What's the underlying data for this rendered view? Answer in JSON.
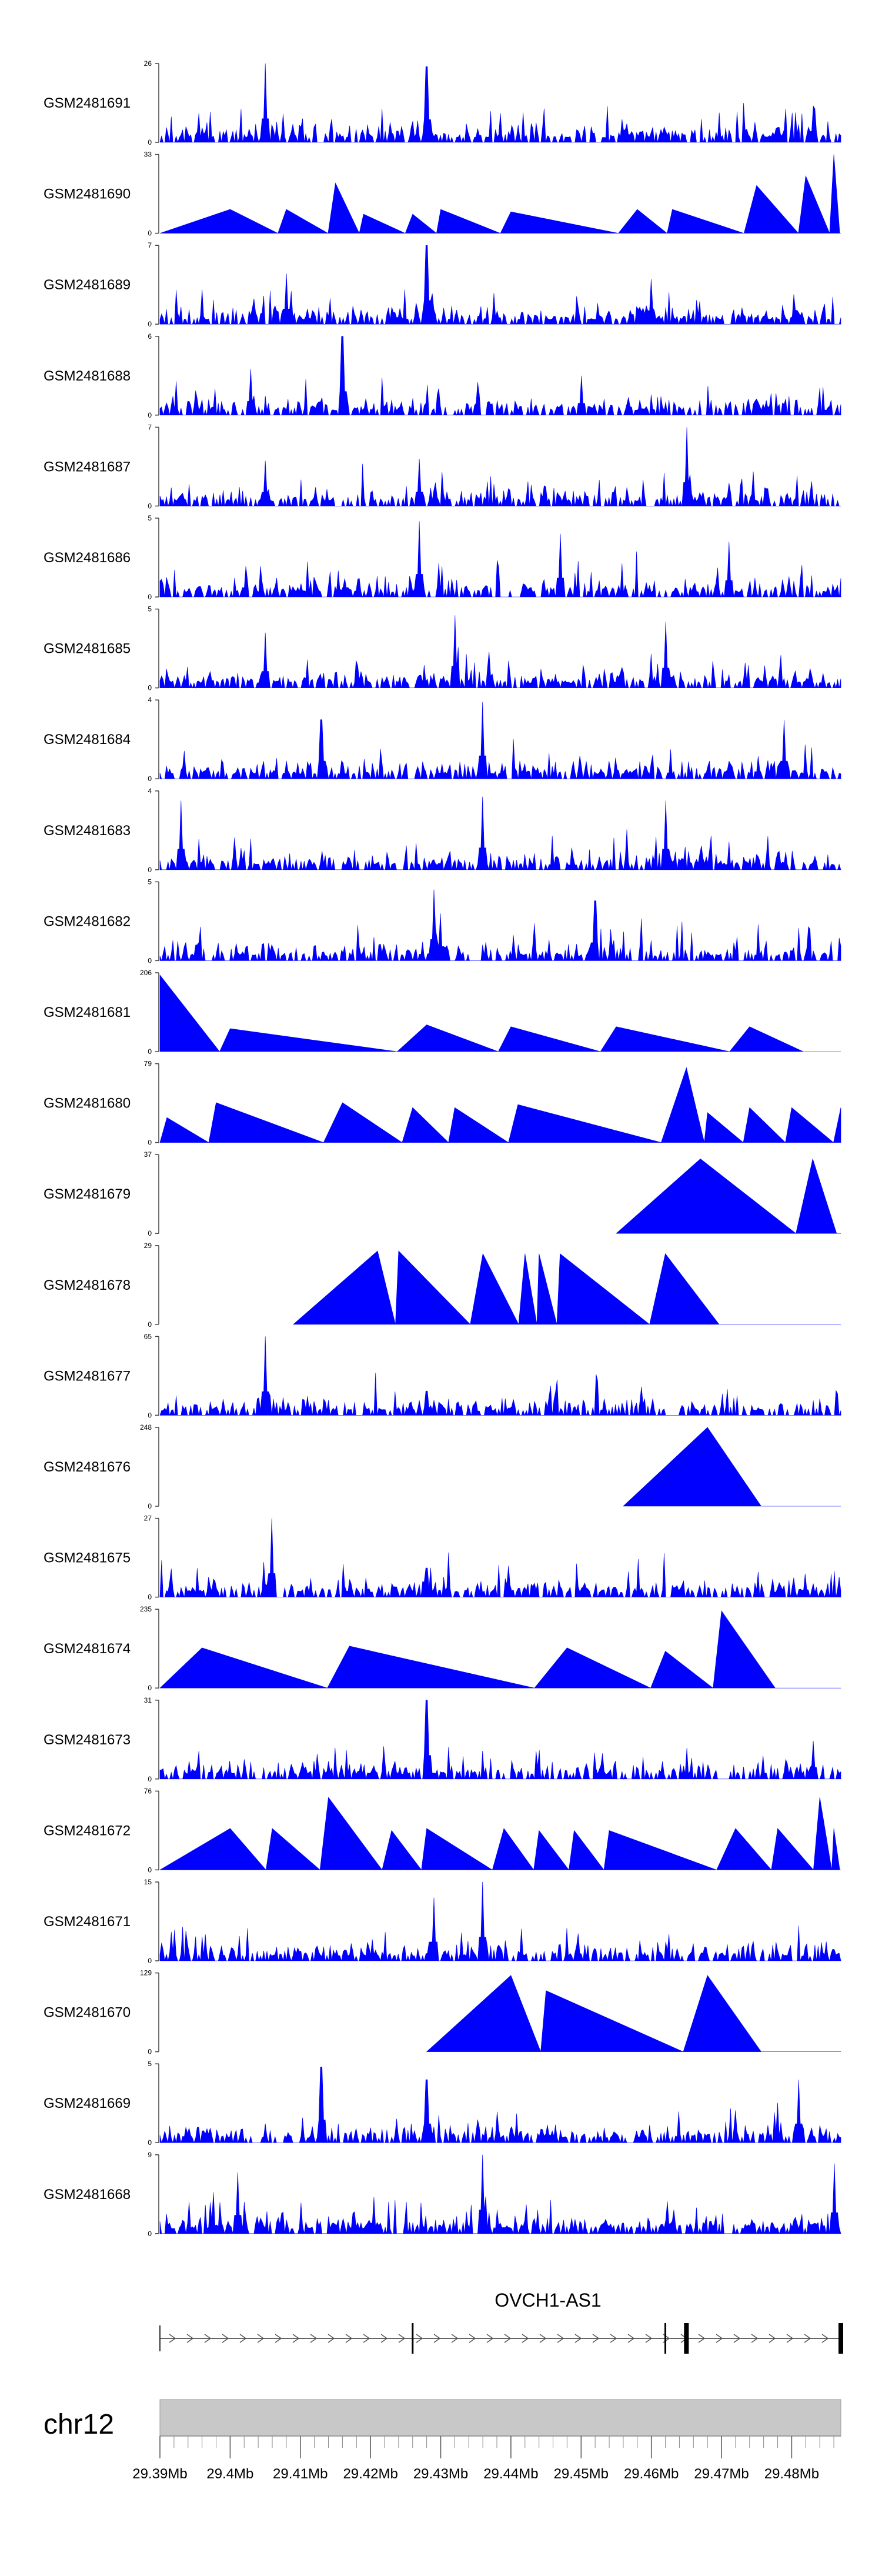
{
  "chart_data": {
    "type": "area",
    "title": "",
    "colors": {
      "signal": "#0000ff",
      "axis": "#404040",
      "ideogram": "#c8c8c8",
      "gene": "#000000"
    },
    "genomic_range_mb": [
      29.39,
      29.487
    ],
    "tracks": [
      {
        "name": "GSM2481691",
        "ymin": 0,
        "ymax": 26,
        "style": "dense",
        "peaks": [
          [
            29.405,
            26
          ],
          [
            29.409,
            6
          ],
          [
            29.428,
            25
          ],
          [
            29.483,
            12
          ]
        ]
      },
      {
        "name": "GSM2481690",
        "ymin": 0,
        "ymax": 33,
        "style": "sparse",
        "peaks": [
          [
            29.4,
            10
          ],
          [
            29.408,
            10
          ],
          [
            29.415,
            21
          ],
          [
            29.419,
            8
          ],
          [
            29.426,
            8
          ],
          [
            29.43,
            10
          ],
          [
            29.44,
            9
          ],
          [
            29.458,
            10
          ],
          [
            29.463,
            10
          ],
          [
            29.475,
            20
          ],
          [
            29.482,
            24
          ],
          [
            29.486,
            33
          ]
        ]
      },
      {
        "name": "GSM2481689",
        "ymin": 0,
        "ymax": 7,
        "style": "dense",
        "peaks": [
          [
            29.428,
            7
          ],
          [
            29.408,
            4.5
          ],
          [
            29.46,
            4
          ]
        ]
      },
      {
        "name": "GSM2481688",
        "ymin": 0,
        "ymax": 6,
        "style": "dense",
        "peaks": [
          [
            29.416,
            6
          ],
          [
            29.403,
            3.5
          ],
          [
            29.45,
            3
          ]
        ]
      },
      {
        "name": "GSM2481687",
        "ymin": 0,
        "ymax": 7,
        "style": "dense",
        "peaks": [
          [
            29.465,
            7
          ],
          [
            29.427,
            4.2
          ],
          [
            29.405,
            4
          ]
        ]
      },
      {
        "name": "GSM2481686",
        "ymin": 0,
        "ymax": 5,
        "style": "dense",
        "peaks": [
          [
            29.427,
            4.8
          ],
          [
            29.447,
            4
          ],
          [
            29.471,
            3.5
          ]
        ]
      },
      {
        "name": "GSM2481685",
        "ymin": 0,
        "ymax": 5,
        "style": "dense",
        "peaks": [
          [
            29.432,
            4.6
          ],
          [
            29.462,
            4.2
          ],
          [
            29.405,
            3.5
          ]
        ]
      },
      {
        "name": "GSM2481684",
        "ymin": 0,
        "ymax": 4,
        "style": "dense",
        "peaks": [
          [
            29.436,
            3.9
          ],
          [
            29.413,
            3
          ],
          [
            29.479,
            3
          ]
        ]
      },
      {
        "name": "GSM2481683",
        "ymin": 0,
        "ymax": 4,
        "style": "dense",
        "peaks": [
          [
            29.393,
            3.5
          ],
          [
            29.436,
            3.7
          ],
          [
            29.462,
            3.5
          ]
        ]
      },
      {
        "name": "GSM2481682",
        "ymin": 0,
        "ymax": 5,
        "style": "dense",
        "peaks": [
          [
            29.429,
            4.5
          ],
          [
            29.43,
            3
          ],
          [
            29.452,
            3.8
          ]
        ]
      },
      {
        "name": "GSM2481681",
        "ymin": 0,
        "ymax": 206,
        "style": "sparse",
        "peaks": [
          [
            29.39,
            200
          ],
          [
            29.4,
            60
          ],
          [
            29.428,
            70
          ],
          [
            29.44,
            65
          ],
          [
            29.455,
            65
          ],
          [
            29.474,
            65
          ]
        ]
      },
      {
        "name": "GSM2481680",
        "ymin": 0,
        "ymax": 79,
        "style": "sparse",
        "peaks": [
          [
            29.391,
            25
          ],
          [
            29.398,
            40
          ],
          [
            29.416,
            40
          ],
          [
            29.426,
            35
          ],
          [
            29.432,
            35
          ],
          [
            29.441,
            38
          ],
          [
            29.465,
            75
          ],
          [
            29.468,
            30
          ],
          [
            29.474,
            35
          ],
          [
            29.48,
            35
          ],
          [
            29.487,
            35
          ]
        ]
      },
      {
        "name": "GSM2481679",
        "ymin": 0,
        "ymax": 37,
        "style": "sparse",
        "peaks": [
          [
            29.467,
            35
          ],
          [
            29.483,
            35
          ]
        ]
      },
      {
        "name": "GSM2481678",
        "ymin": 0,
        "ymax": 29,
        "style": "sparse",
        "peaks": [
          [
            29.421,
            27
          ],
          [
            29.424,
            27
          ],
          [
            29.436,
            26
          ],
          [
            29.442,
            26
          ],
          [
            29.444,
            26
          ],
          [
            29.447,
            26
          ],
          [
            29.462,
            26
          ]
        ]
      },
      {
        "name": "GSM2481677",
        "ymin": 0,
        "ymax": 65,
        "style": "dense",
        "peaks": [
          [
            29.405,
            65
          ],
          [
            29.428,
            20
          ],
          [
            29.435,
            12
          ]
        ]
      },
      {
        "name": "GSM2481676",
        "ymin": 0,
        "ymax": 248,
        "style": "sparse",
        "peaks": [
          [
            29.468,
            248
          ]
        ]
      },
      {
        "name": "GSM2481675",
        "ymin": 0,
        "ymax": 27,
        "style": "dense",
        "peaks": [
          [
            29.406,
            27
          ],
          [
            29.428,
            10
          ],
          [
            29.482,
            8
          ]
        ]
      },
      {
        "name": "GSM2481674",
        "ymin": 0,
        "ymax": 235,
        "style": "sparse",
        "peaks": [
          [
            29.396,
            120
          ],
          [
            29.417,
            125
          ],
          [
            29.448,
            120
          ],
          [
            29.462,
            110
          ],
          [
            29.47,
            230
          ]
        ]
      },
      {
        "name": "GSM2481673",
        "ymin": 0,
        "ymax": 31,
        "style": "dense",
        "peaks": [
          [
            29.428,
            31
          ],
          [
            29.483,
            15
          ]
        ]
      },
      {
        "name": "GSM2481672",
        "ymin": 0,
        "ymax": 76,
        "style": "sparse",
        "peaks": [
          [
            29.4,
            40
          ],
          [
            29.406,
            40
          ],
          [
            29.414,
            70
          ],
          [
            29.423,
            38
          ],
          [
            29.428,
            40
          ],
          [
            29.439,
            40
          ],
          [
            29.444,
            38
          ],
          [
            29.449,
            38
          ],
          [
            29.454,
            38
          ],
          [
            29.472,
            40
          ],
          [
            29.478,
            40
          ],
          [
            29.484,
            70
          ],
          [
            29.486,
            40
          ]
        ]
      },
      {
        "name": "GSM2481671",
        "ymin": 0,
        "ymax": 15,
        "style": "dense",
        "peaks": [
          [
            29.436,
            15
          ],
          [
            29.429,
            12
          ]
        ]
      },
      {
        "name": "GSM2481670",
        "ymin": 0,
        "ymax": 129,
        "style": "sparse",
        "peaks": [
          [
            29.44,
            125
          ],
          [
            29.445,
            100
          ],
          [
            29.468,
            125
          ]
        ]
      },
      {
        "name": "GSM2481669",
        "ymin": 0,
        "ymax": 5,
        "style": "dense",
        "peaks": [
          [
            29.413,
            4.8
          ],
          [
            29.428,
            4
          ],
          [
            29.481,
            4
          ]
        ]
      },
      {
        "name": "GSM2481668",
        "ymin": 0,
        "ymax": 9,
        "style": "dense",
        "peaks": [
          [
            29.436,
            9
          ],
          [
            29.401,
            7
          ],
          [
            29.486,
            8
          ]
        ]
      }
    ],
    "gene": {
      "name": "OVCH1-AS1",
      "start_mb": 29.39,
      "end_mb": 29.487,
      "exons_mb": [
        29.426,
        29.462,
        29.465,
        29.487
      ]
    },
    "chromosome": "chr12",
    "xaxis": {
      "ticks_mb": [
        29.39,
        29.4,
        29.41,
        29.42,
        29.43,
        29.44,
        29.45,
        29.46,
        29.47,
        29.48
      ],
      "tick_labels": [
        "29.39Mb",
        "29.4Mb",
        "29.41Mb",
        "29.42Mb",
        "29.43Mb",
        "29.44Mb",
        "29.45Mb",
        "29.46Mb",
        "29.47Mb",
        "29.48Mb"
      ]
    }
  }
}
